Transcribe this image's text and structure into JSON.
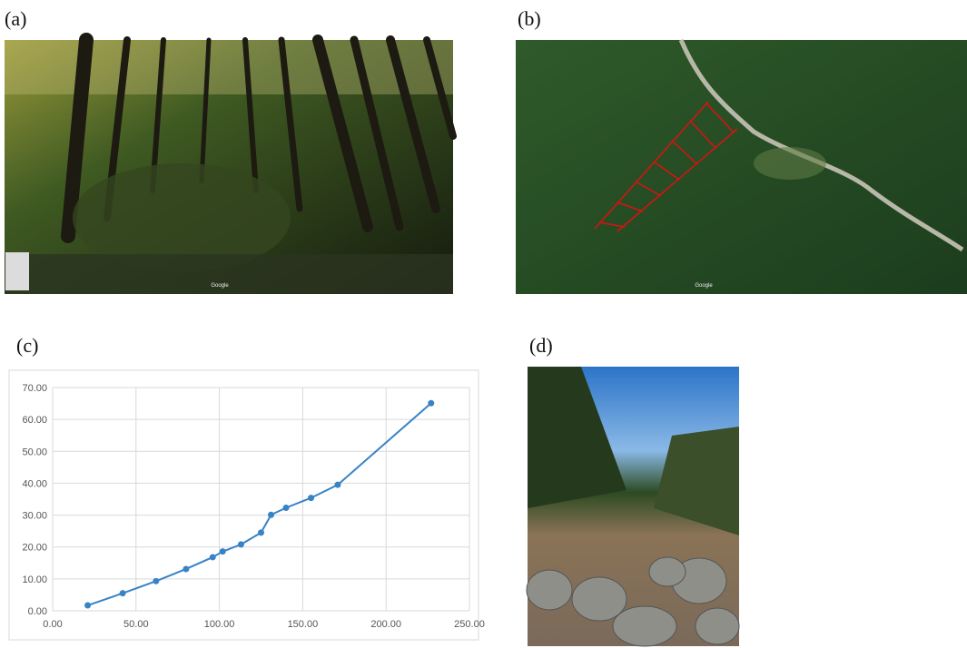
{
  "panels": [
    {
      "label": "(a)",
      "watermark": "Google"
    },
    {
      "label": "(b)",
      "watermark": "Google"
    },
    {
      "label": "(c)"
    },
    {
      "label": "(d)"
    }
  ],
  "chart_data": {
    "type": "line",
    "x": [
      21,
      42,
      62,
      80,
      96,
      102,
      113,
      125,
      131,
      140,
      155,
      171,
      227
    ],
    "series": [
      {
        "color": "#3783c6",
        "values": [
          1.7,
          5.5,
          9.3,
          13.1,
          16.8,
          18.6,
          20.8,
          24.5,
          30.1,
          32.3,
          35.4,
          39.5,
          65.1
        ]
      }
    ],
    "xlim": [
      0,
      250
    ],
    "ylim": [
      0,
      70
    ],
    "xticks": [
      {
        "value": 0,
        "label": "0.00"
      },
      {
        "value": 50,
        "label": "50.00"
      },
      {
        "value": 100,
        "label": "100.00"
      },
      {
        "value": 150,
        "label": "150.00"
      },
      {
        "value": 200,
        "label": "200.00"
      },
      {
        "value": 250,
        "label": "250.00"
      }
    ],
    "yticks": [
      {
        "value": 0,
        "label": "0.00"
      },
      {
        "value": 10,
        "label": "10.00"
      },
      {
        "value": 20,
        "label": "20.00"
      },
      {
        "value": 30,
        "label": "30.00"
      },
      {
        "value": 40,
        "label": "40.00"
      },
      {
        "value": 50,
        "label": "50.00"
      },
      {
        "value": 60,
        "label": "60.00"
      },
      {
        "value": 70,
        "label": "70.00"
      }
    ],
    "grid": true
  }
}
